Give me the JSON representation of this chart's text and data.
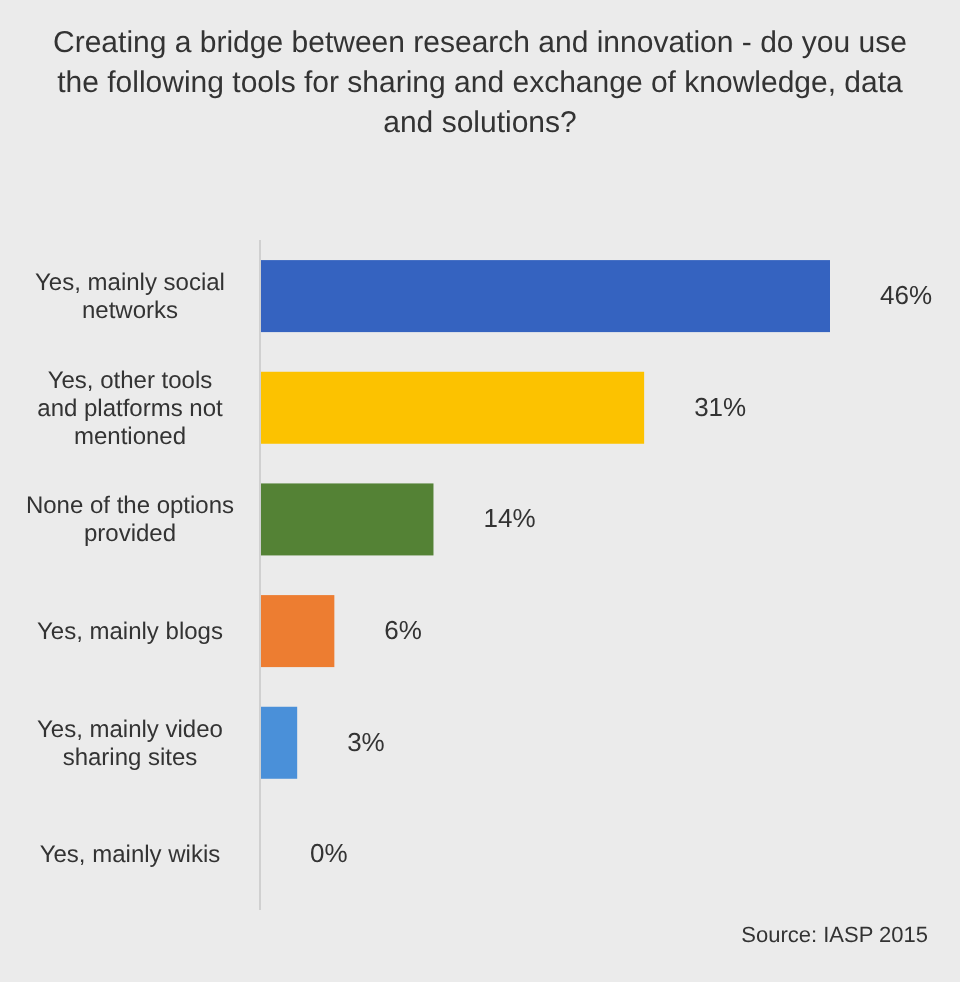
{
  "chart_data": {
    "type": "bar",
    "orientation": "horizontal",
    "title": "Creating a bridge between research and innovation - do you use the following tools for sharing and exchange of knowledge, data and solutions?",
    "categories": [
      "Yes, mainly social networks",
      "Yes, other tools and platforms not mentioned",
      "None of the options provided",
      "Yes, mainly blogs",
      "Yes, mainly video sharing sites",
      "Yes, mainly wikis"
    ],
    "values": [
      46,
      31,
      14,
      6,
      3,
      0
    ],
    "colors": [
      "#3563c0",
      "#fcc200",
      "#548235",
      "#ed7d31",
      "#4a90d9",
      "#c8c8c8"
    ],
    "value_labels": [
      "46%",
      "31%",
      "14%",
      "6%",
      "3%",
      "0%"
    ],
    "annotations": [
      "Source: IASP 2015"
    ]
  }
}
